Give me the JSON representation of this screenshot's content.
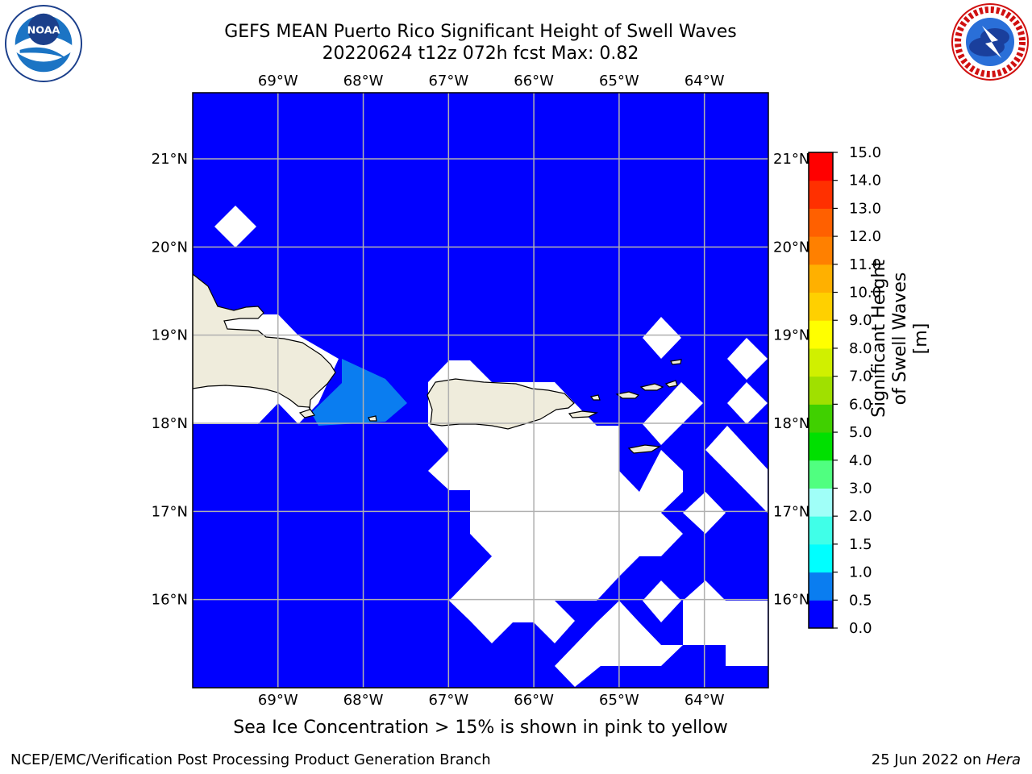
{
  "title": {
    "line1": "GEFS MEAN Puerto Rico Significant Height of Swell Waves",
    "line2": "20220624 t12z 072h fcst   Max: 0.82"
  },
  "logos": {
    "left": {
      "icon": "noaa-logo",
      "text": "NOAA",
      "ring_text": "NATIONAL OCEANIC AND ATMOSPHERIC ADMINISTRATION · U.S. DEPARTMENT OF COMMERCE"
    },
    "right": {
      "icon": "nws-logo",
      "ring_text": "NATIONAL WEATHER SERVICE"
    }
  },
  "map": {
    "lon_labels": [
      "69°W",
      "68°W",
      "67°W",
      "66°W",
      "65°W",
      "64°W"
    ],
    "lat_labels": [
      "21°N",
      "20°N",
      "19°N",
      "18°N",
      "17°N",
      "16°N"
    ],
    "lon_values": [
      -69,
      -68,
      -67,
      -66,
      -65,
      -64
    ],
    "lat_values": [
      21,
      20,
      19,
      18,
      17,
      16
    ],
    "extent": {
      "lon_min": -70,
      "lon_max": -63.25,
      "lat_min": 15,
      "lat_max": 21.75
    },
    "grid": true,
    "colors": {
      "ocean_low": "#0000ff",
      "ocean_mid": "#0a7df0",
      "land": "#efecdc",
      "missing": "#ffffff",
      "grid": "#b0b0b0"
    }
  },
  "colorbar": {
    "label": "Significant Height of Swell Waves [m]",
    "ticks": [
      "0.0",
      "0.5",
      "1.0",
      "1.5",
      "2.0",
      "3.0",
      "4.0",
      "5.0",
      "6.0",
      "7.0",
      "8.0",
      "9.0",
      "10.0",
      "11.0",
      "12.0",
      "13.0",
      "14.0",
      "15.0"
    ],
    "colors": [
      "#0000ff",
      "#0a7df0",
      "#00ffff",
      "#40ffe8",
      "#a0fff8",
      "#50ff80",
      "#00e000",
      "#40d000",
      "#a0e000",
      "#d0f000",
      "#ffff00",
      "#ffd000",
      "#ffb000",
      "#ff8000",
      "#ff6000",
      "#ff3000",
      "#ff0000"
    ]
  },
  "note": "Sea Ice Concentration > 15% is shown in pink to yellow",
  "footer": {
    "left": "NCEP/EMC/Verification Post Processing Product Generation Branch",
    "right_date": "25 Jun 2022 on ",
    "right_machine": "Hera"
  }
}
